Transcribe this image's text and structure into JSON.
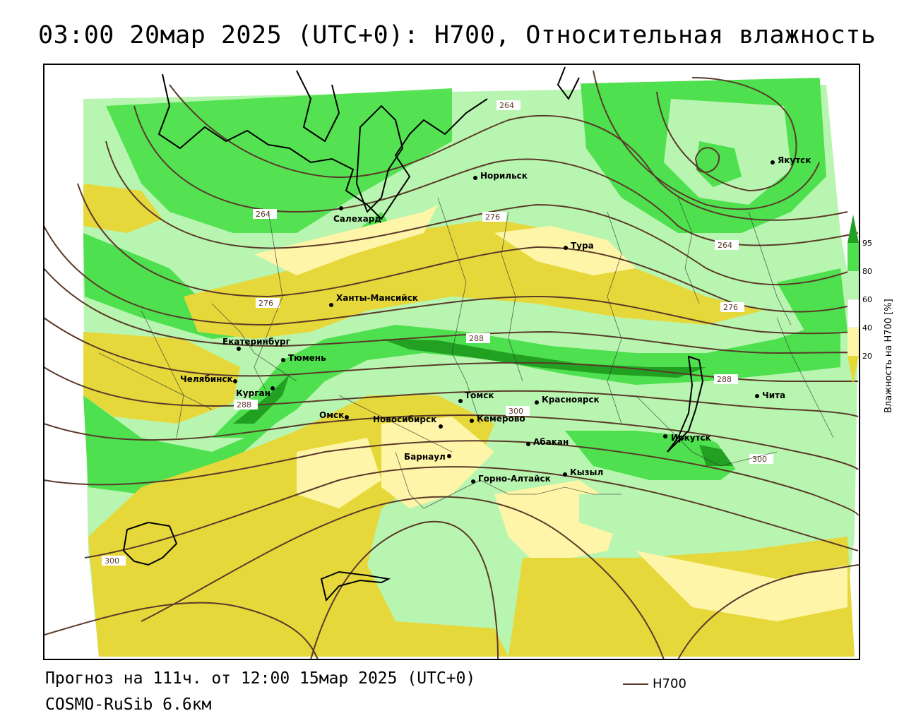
{
  "title": "03:00 20мар 2025 (UTC+0): H700, Относительная влажность",
  "footer": {
    "forecast": "Прогноз на 111ч. от 12:00 15мар 2025 (UTC+0)",
    "model": "COSMO-RuSib 6.6км",
    "legend_series": "H700"
  },
  "colorbar": {
    "title": "Влажность на H700 [%]",
    "ticks": [
      "95",
      "80",
      "60",
      "40",
      "20"
    ],
    "colors": {
      "dark_green": "#22a022",
      "green": "#4ee04e",
      "light_green": "#b8f5b0",
      "white": "#ffffff",
      "pale_yellow": "#fff5a8",
      "yellow": "#e6d83a"
    }
  },
  "isohypse_labels": [
    "264",
    "264",
    "264",
    "276",
    "276",
    "276",
    "288",
    "288",
    "288",
    "300",
    "300",
    "300"
  ],
  "cities": [
    {
      "name": "Норильск"
    },
    {
      "name": "Якутск"
    },
    {
      "name": "Салехард"
    },
    {
      "name": "Тура"
    },
    {
      "name": "Ханты-Мансийск"
    },
    {
      "name": "Екатеринбург"
    },
    {
      "name": "Тюмень"
    },
    {
      "name": "Челябинск"
    },
    {
      "name": "Курган"
    },
    {
      "name": "Омск"
    },
    {
      "name": "Новосибирск"
    },
    {
      "name": "Томск"
    },
    {
      "name": "Кемерово"
    },
    {
      "name": "Красноярск"
    },
    {
      "name": "Абакан"
    },
    {
      "name": "Барнаул"
    },
    {
      "name": "Горно-Алтайск"
    },
    {
      "name": "Кызыл"
    },
    {
      "name": "Иркутск"
    },
    {
      "name": "Чита"
    }
  ]
}
